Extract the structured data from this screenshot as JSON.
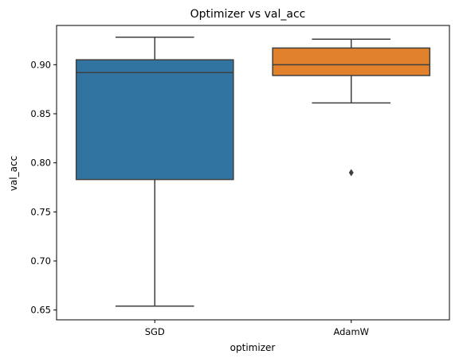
{
  "chart_data": {
    "type": "box",
    "title": "Optimizer vs val_acc",
    "xlabel": "optimizer",
    "ylabel": "val_acc",
    "ylim": [
      0.64,
      0.94
    ],
    "yticks": [
      "0.65",
      "0.70",
      "0.75",
      "0.80",
      "0.85",
      "0.90"
    ],
    "grid": false,
    "categories": [
      "SGD",
      "AdamW"
    ],
    "boxes": [
      {
        "name": "SGD",
        "color": "#3274a1",
        "whisker_low": 0.654,
        "q1": 0.783,
        "median": 0.892,
        "q3": 0.905,
        "whisker_high": 0.928,
        "outliers": []
      },
      {
        "name": "AdamW",
        "color": "#e1812c",
        "whisker_low": 0.861,
        "q1": 0.889,
        "median": 0.9,
        "q3": 0.917,
        "whisker_high": 0.926,
        "outliers": [
          0.79
        ]
      }
    ]
  }
}
